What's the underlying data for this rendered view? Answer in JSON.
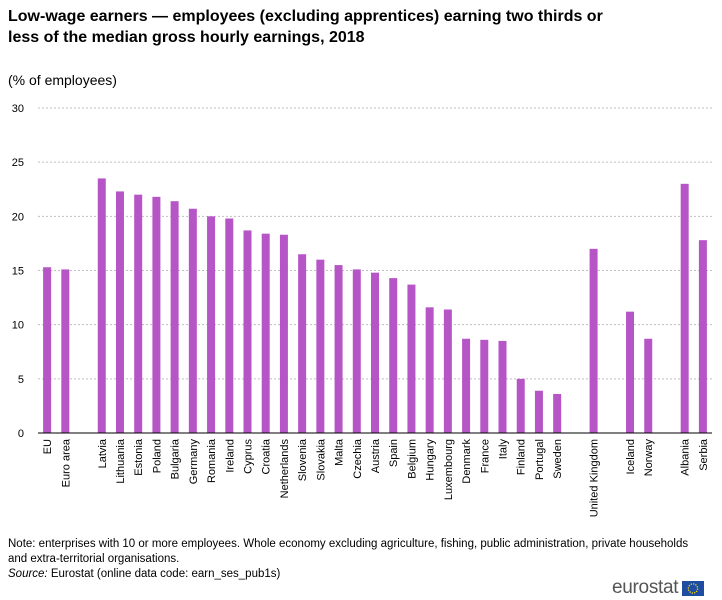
{
  "chart_data": {
    "type": "bar",
    "title": "Low-wage earners — employees (excluding apprentices) earning two thirds or less of the median gross hourly earnings, 2018",
    "subtitle": "(% of employees)",
    "categories": [
      "EU",
      "Euro area",
      "Latvia",
      "Lithuania",
      "Estonia",
      "Poland",
      "Bulgaria",
      "Germany",
      "Romania",
      "Ireland",
      "Cyprus",
      "Croatia",
      "Netherlands",
      "Slovenia",
      "Slovakia",
      "Malta",
      "Czechia",
      "Austria",
      "Spain",
      "Belgium",
      "Hungary",
      "Luxembourg",
      "Denmark",
      "France",
      "Italy",
      "Finland",
      "Portugal",
      "Sweden",
      "United Kingdom",
      "Iceland",
      "Norway",
      "Albania",
      "Serbia"
    ],
    "values": [
      15.3,
      15.1,
      23.5,
      22.3,
      22.0,
      21.8,
      21.4,
      20.7,
      20.0,
      19.8,
      18.7,
      18.4,
      18.3,
      16.5,
      16.0,
      15.5,
      15.1,
      14.8,
      14.3,
      13.7,
      11.6,
      11.4,
      8.7,
      8.6,
      8.5,
      5.0,
      3.9,
      3.6,
      17.0,
      11.2,
      8.7,
      23.0,
      17.8
    ],
    "groups": [
      [
        0,
        1
      ],
      [
        2,
        27
      ],
      [
        28,
        28
      ],
      [
        29,
        30
      ],
      [
        31,
        32
      ]
    ],
    "ylim": [
      0,
      30
    ],
    "yticks": [
      0,
      5,
      10,
      15,
      20,
      25,
      30
    ],
    "bar_color": "#b656c6",
    "grid_color": "#bfbfbf",
    "grid": true
  },
  "footer": {
    "note": "Note: enterprises with 10 or more employees. Whole economy excluding agriculture, fishing, public administration, private households and extra-territorial organisations.",
    "source_label": "Source:",
    "source_text": " Eurostat (online data code: earn_ses_pub1s)",
    "logo_text": "eurostat"
  }
}
